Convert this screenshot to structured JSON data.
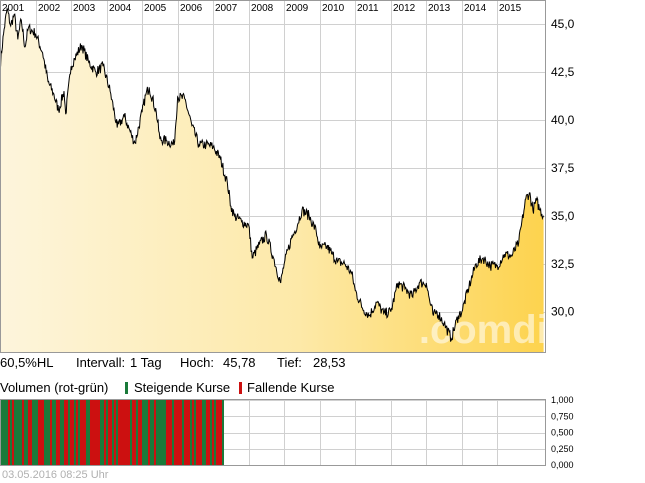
{
  "chart_data": {
    "type": "area",
    "years": [
      "2001",
      "2002",
      "2003",
      "2004",
      "2005",
      "2006",
      "2007",
      "2008",
      "2009",
      "2010",
      "2011",
      "2012",
      "2013",
      "2014",
      "2015"
    ],
    "y_ticks": [
      "45,0",
      "42,5",
      "40,0",
      "37,5",
      "35,0",
      "32,5",
      "30,0"
    ],
    "y_tick_values": [
      45.0,
      42.5,
      40.0,
      37.5,
      35.0,
      32.5,
      30.0
    ],
    "ylim": [
      27.9,
      46.2
    ],
    "xlim": [
      2001.0,
      2016.34
    ],
    "series": [
      {
        "x": [
          2001.0,
          2001.1,
          2001.2,
          2001.3,
          2001.4,
          2001.5,
          2001.6,
          2001.7,
          2001.8,
          2002.0,
          2002.2,
          2002.35,
          2002.5,
          2002.65,
          2002.8,
          2002.85,
          2003.0,
          2003.1,
          2003.3,
          2003.5,
          2003.7,
          2003.9,
          2004.1,
          2004.3,
          2004.5,
          2004.7,
          2004.8,
          2005.0,
          2005.1,
          2005.2,
          2005.4,
          2005.5,
          2005.7,
          2005.9,
          2006.0,
          2006.2,
          2006.4,
          2006.6,
          2006.8,
          2007.0,
          2007.2,
          2007.4,
          2007.5,
          2007.6,
          2007.8,
          2008.0,
          2008.1,
          2008.3,
          2008.5,
          2008.7,
          2008.9,
          2009.0,
          2009.2,
          2009.3,
          2009.5,
          2009.7,
          2009.9,
          2010.0,
          2010.2,
          2010.35,
          2010.5,
          2010.7,
          2010.9,
          2011.0,
          2011.2,
          2011.4,
          2011.6,
          2011.8,
          2012.0,
          2012.2,
          2012.4,
          2012.6,
          2012.8,
          2013.0,
          2013.1,
          2013.2,
          2013.3,
          2013.5,
          2013.7,
          2013.9,
          2014.0,
          2014.2,
          2014.4,
          2014.6,
          2014.8,
          2015.0,
          2015.2,
          2015.4,
          2015.6,
          2015.8,
          2015.9,
          2016.0,
          2016.1,
          2016.2,
          2016.3
        ],
        "values": [
          42.8,
          44.5,
          45.8,
          44.9,
          45.5,
          44.2,
          45.2,
          43.8,
          44.8,
          44.5,
          43.5,
          42.0,
          41.4,
          40.5,
          41.5,
          40.3,
          42.8,
          43.2,
          43.9,
          43.0,
          42.5,
          42.8,
          41.5,
          39.6,
          40.2,
          39.2,
          38.8,
          40.4,
          41.3,
          41.7,
          40.4,
          39.0,
          38.9,
          38.7,
          41.2,
          41.1,
          39.7,
          38.7,
          38.7,
          38.6,
          38.0,
          36.7,
          35.5,
          35.0,
          34.7,
          34.5,
          32.8,
          33.5,
          34.0,
          32.8,
          31.5,
          32.5,
          33.8,
          34.2,
          35.3,
          35.0,
          34.2,
          33.3,
          33.4,
          33.0,
          32.6,
          32.5,
          32.0,
          31.1,
          30.2,
          29.8,
          30.5,
          29.9,
          30.0,
          31.5,
          31.2,
          30.8,
          31.5,
          31.5,
          30.5,
          29.8,
          30.0,
          29.4,
          28.6,
          29.8,
          30.0,
          31.3,
          32.5,
          32.8,
          32.4,
          32.4,
          33.0,
          32.9,
          33.6,
          35.9,
          36.2,
          35.3,
          35.8,
          35.3,
          35.0
        ]
      }
    ],
    "watermark": ".comdirect"
  },
  "info": {
    "range": "60,5%HL",
    "interval_label": "Intervall:",
    "interval_value": "1 Tag",
    "high_label": "Hoch:",
    "high_value": "45,78",
    "low_label": "Tief:",
    "low_value": "28,53"
  },
  "volume": {
    "title": "Volumen (rot-grün)",
    "rising": "Steigende Kurse",
    "falling": "Fallende Kurse",
    "rising_color": "#1a7a3a",
    "falling_color": "#cc1010",
    "ticks": [
      "1,000",
      "0,750",
      "0,500",
      "0,250",
      "0,000"
    ]
  },
  "timestamp": "03.05.2016 08:25 Uhr"
}
